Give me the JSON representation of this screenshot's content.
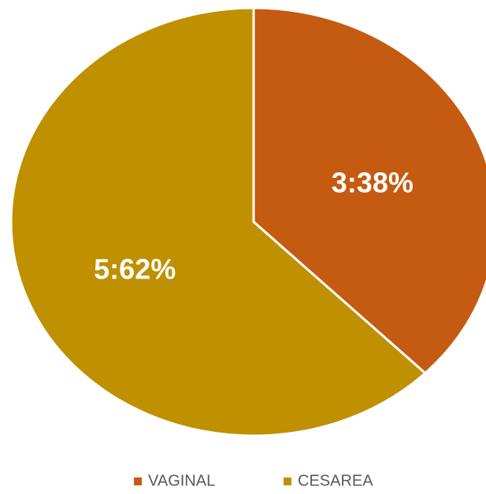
{
  "chart_data": {
    "type": "pie",
    "categories": [
      "VAGINAL",
      "CESAREA"
    ],
    "values": [
      3,
      5
    ],
    "value_labels": [
      "3:38%",
      "5:62%"
    ],
    "colors": [
      "#c55a11",
      "#bf9000"
    ],
    "legend": "bottom"
  }
}
